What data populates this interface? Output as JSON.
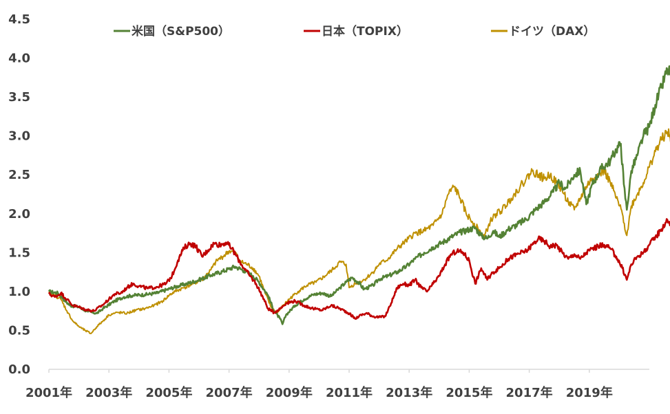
{
  "chart_data": {
    "type": "line",
    "title": "",
    "xlabel": "",
    "ylabel": "",
    "ylim": [
      0,
      4.5
    ],
    "xlim": [
      2001,
      2021.0
    ],
    "yticks": [
      "0.0",
      "0.5",
      "1.0",
      "1.5",
      "2.0",
      "2.5",
      "3.0",
      "3.5",
      "4.0",
      "4.5"
    ],
    "xticks": [
      {
        "year": 2001,
        "label": "2001年"
      },
      {
        "year": 2003,
        "label": "2003年"
      },
      {
        "year": 2005,
        "label": "2005年"
      },
      {
        "year": 2007,
        "label": "2007年"
      },
      {
        "year": 2009,
        "label": "2009年"
      },
      {
        "year": 2011,
        "label": "2011年"
      },
      {
        "year": 2013,
        "label": "2013年"
      },
      {
        "year": 2015,
        "label": "2015年"
      },
      {
        "year": 2017,
        "label": "2017年"
      },
      {
        "year": 2019,
        "label": "2019年"
      }
    ],
    "legend_position": "top",
    "series": [
      {
        "name": "米国（S&P500）",
        "color": "#548235",
        "points": [
          [
            2001.0,
            1.0
          ],
          [
            2001.3,
            0.98
          ],
          [
            2001.7,
            0.82
          ],
          [
            2002.0,
            0.8
          ],
          [
            2002.3,
            0.74
          ],
          [
            2002.6,
            0.72
          ],
          [
            2002.8,
            0.78
          ],
          [
            2003.2,
            0.88
          ],
          [
            2003.5,
            0.93
          ],
          [
            2003.8,
            0.95
          ],
          [
            2004.2,
            0.96
          ],
          [
            2004.6,
            0.98
          ],
          [
            2004.9,
            1.02
          ],
          [
            2005.3,
            1.07
          ],
          [
            2005.6,
            1.1
          ],
          [
            2006.0,
            1.15
          ],
          [
            2006.4,
            1.21
          ],
          [
            2006.8,
            1.26
          ],
          [
            2007.0,
            1.29
          ],
          [
            2007.2,
            1.32
          ],
          [
            2007.5,
            1.27
          ],
          [
            2007.8,
            1.2
          ],
          [
            2008.0,
            1.12
          ],
          [
            2008.3,
            0.95
          ],
          [
            2008.5,
            0.75
          ],
          [
            2008.7,
            0.65
          ],
          [
            2008.78,
            0.58
          ],
          [
            2008.9,
            0.7
          ],
          [
            2009.2,
            0.82
          ],
          [
            2009.5,
            0.9
          ],
          [
            2009.8,
            0.96
          ],
          [
            2010.1,
            0.98
          ],
          [
            2010.4,
            0.94
          ],
          [
            2010.7,
            1.05
          ],
          [
            2010.9,
            1.12
          ],
          [
            2011.1,
            1.18
          ],
          [
            2011.3,
            1.12
          ],
          [
            2011.5,
            1.03
          ],
          [
            2011.8,
            1.08
          ],
          [
            2012.0,
            1.16
          ],
          [
            2012.3,
            1.2
          ],
          [
            2012.6,
            1.25
          ],
          [
            2012.9,
            1.32
          ],
          [
            2013.2,
            1.42
          ],
          [
            2013.5,
            1.5
          ],
          [
            2013.8,
            1.57
          ],
          [
            2014.1,
            1.63
          ],
          [
            2014.4,
            1.7
          ],
          [
            2014.7,
            1.76
          ],
          [
            2015.0,
            1.8
          ],
          [
            2015.2,
            1.82
          ],
          [
            2015.4,
            1.72
          ],
          [
            2015.6,
            1.68
          ],
          [
            2015.8,
            1.78
          ],
          [
            2016.0,
            1.7
          ],
          [
            2016.3,
            1.8
          ],
          [
            2016.6,
            1.86
          ],
          [
            2016.9,
            1.93
          ],
          [
            2017.2,
            2.05
          ],
          [
            2017.5,
            2.15
          ],
          [
            2017.8,
            2.28
          ],
          [
            2018.0,
            2.4
          ],
          [
            2018.2,
            2.32
          ],
          [
            2018.5,
            2.5
          ],
          [
            2018.7,
            2.55
          ],
          [
            2018.9,
            2.12
          ],
          [
            2019.1,
            2.38
          ],
          [
            2019.4,
            2.58
          ],
          [
            2019.7,
            2.68
          ],
          [
            2019.9,
            2.83
          ],
          [
            2020.05,
            2.9
          ],
          [
            2020.15,
            2.38
          ],
          [
            2020.25,
            2.05
          ],
          [
            2020.4,
            2.55
          ],
          [
            2020.6,
            2.75
          ],
          [
            2020.8,
            3.0
          ],
          [
            2021.0,
            3.12
          ],
          [
            2021.2,
            3.4
          ],
          [
            2021.4,
            3.62
          ],
          [
            2021.6,
            3.85
          ],
          [
            2021.75,
            3.78
          ],
          [
            2021.9,
            4.06
          ]
        ]
      },
      {
        "name": "日本（TOPIX）",
        "color": "#C00000",
        "points": [
          [
            2001.0,
            0.97
          ],
          [
            2001.2,
            0.93
          ],
          [
            2001.4,
            0.98
          ],
          [
            2001.6,
            0.9
          ],
          [
            2001.8,
            0.82
          ],
          [
            2002.0,
            0.8
          ],
          [
            2002.2,
            0.77
          ],
          [
            2002.5,
            0.75
          ],
          [
            2002.8,
            0.83
          ],
          [
            2003.0,
            0.9
          ],
          [
            2003.2,
            0.97
          ],
          [
            2003.4,
            0.98
          ],
          [
            2003.6,
            1.05
          ],
          [
            2003.8,
            1.1
          ],
          [
            2004.0,
            1.07
          ],
          [
            2004.3,
            1.04
          ],
          [
            2004.6,
            1.06
          ],
          [
            2004.9,
            1.1
          ],
          [
            2005.1,
            1.2
          ],
          [
            2005.3,
            1.4
          ],
          [
            2005.5,
            1.56
          ],
          [
            2005.7,
            1.62
          ],
          [
            2005.9,
            1.58
          ],
          [
            2006.1,
            1.45
          ],
          [
            2006.3,
            1.53
          ],
          [
            2006.5,
            1.62
          ],
          [
            2006.7,
            1.6
          ],
          [
            2006.9,
            1.63
          ],
          [
            2007.1,
            1.55
          ],
          [
            2007.3,
            1.42
          ],
          [
            2007.5,
            1.3
          ],
          [
            2007.7,
            1.2
          ],
          [
            2007.9,
            1.1
          ],
          [
            2008.1,
            0.95
          ],
          [
            2008.3,
            0.78
          ],
          [
            2008.5,
            0.73
          ],
          [
            2008.7,
            0.78
          ],
          [
            2008.9,
            0.85
          ],
          [
            2009.2,
            0.88
          ],
          [
            2009.5,
            0.82
          ],
          [
            2009.8,
            0.78
          ],
          [
            2010.1,
            0.76
          ],
          [
            2010.4,
            0.82
          ],
          [
            2010.7,
            0.78
          ],
          [
            2011.0,
            0.72
          ],
          [
            2011.2,
            0.65
          ],
          [
            2011.4,
            0.7
          ],
          [
            2011.6,
            0.72
          ],
          [
            2011.8,
            0.68
          ],
          [
            2012.0,
            0.67
          ],
          [
            2012.2,
            0.68
          ],
          [
            2012.4,
            0.85
          ],
          [
            2012.6,
            1.05
          ],
          [
            2012.8,
            1.1
          ],
          [
            2013.0,
            1.08
          ],
          [
            2013.2,
            1.15
          ],
          [
            2013.4,
            1.05
          ],
          [
            2013.6,
            1.0
          ],
          [
            2013.8,
            1.1
          ],
          [
            2014.0,
            1.2
          ],
          [
            2014.2,
            1.35
          ],
          [
            2014.4,
            1.48
          ],
          [
            2014.6,
            1.52
          ],
          [
            2014.8,
            1.5
          ],
          [
            2015.0,
            1.4
          ],
          [
            2015.2,
            1.1
          ],
          [
            2015.4,
            1.3
          ],
          [
            2015.6,
            1.15
          ],
          [
            2015.8,
            1.25
          ],
          [
            2016.0,
            1.3
          ],
          [
            2016.3,
            1.42
          ],
          [
            2016.6,
            1.48
          ],
          [
            2016.9,
            1.52
          ],
          [
            2017.1,
            1.6
          ],
          [
            2017.3,
            1.68
          ],
          [
            2017.5,
            1.65
          ],
          [
            2017.7,
            1.58
          ],
          [
            2017.9,
            1.6
          ],
          [
            2018.1,
            1.5
          ],
          [
            2018.3,
            1.42
          ],
          [
            2018.5,
            1.48
          ],
          [
            2018.7,
            1.42
          ],
          [
            2018.9,
            1.5
          ],
          [
            2019.1,
            1.55
          ],
          [
            2019.3,
            1.58
          ],
          [
            2019.5,
            1.6
          ],
          [
            2019.7,
            1.55
          ],
          [
            2019.9,
            1.45
          ],
          [
            2020.1,
            1.3
          ],
          [
            2020.25,
            1.15
          ],
          [
            2020.4,
            1.35
          ],
          [
            2020.6,
            1.45
          ],
          [
            2020.8,
            1.5
          ],
          [
            2021.0,
            1.6
          ],
          [
            2021.2,
            1.7
          ],
          [
            2021.4,
            1.8
          ],
          [
            2021.6,
            1.92
          ],
          [
            2021.75,
            1.85
          ],
          [
            2021.9,
            1.9
          ]
        ]
      },
      {
        "name": "ドイツ（DAX）",
        "color": "#BF9000",
        "points": [
          [
            2001.0,
            0.98
          ],
          [
            2001.2,
            0.95
          ],
          [
            2001.4,
            0.9
          ],
          [
            2001.6,
            0.75
          ],
          [
            2001.8,
            0.62
          ],
          [
            2002.0,
            0.55
          ],
          [
            2002.2,
            0.5
          ],
          [
            2002.4,
            0.46
          ],
          [
            2002.6,
            0.55
          ],
          [
            2002.8,
            0.62
          ],
          [
            2003.0,
            0.7
          ],
          [
            2003.3,
            0.73
          ],
          [
            2003.6,
            0.72
          ],
          [
            2003.9,
            0.76
          ],
          [
            2004.2,
            0.78
          ],
          [
            2004.5,
            0.82
          ],
          [
            2004.8,
            0.88
          ],
          [
            2005.0,
            0.95
          ],
          [
            2005.2,
            1.0
          ],
          [
            2005.5,
            1.05
          ],
          [
            2005.8,
            1.1
          ],
          [
            2006.1,
            1.15
          ],
          [
            2006.4,
            1.28
          ],
          [
            2006.6,
            1.4
          ],
          [
            2006.8,
            1.45
          ],
          [
            2007.0,
            1.52
          ],
          [
            2007.2,
            1.5
          ],
          [
            2007.4,
            1.38
          ],
          [
            2007.6,
            1.35
          ],
          [
            2007.8,
            1.3
          ],
          [
            2008.0,
            1.2
          ],
          [
            2008.2,
            0.98
          ],
          [
            2008.4,
            0.8
          ],
          [
            2008.6,
            0.72
          ],
          [
            2008.8,
            0.82
          ],
          [
            2009.0,
            0.9
          ],
          [
            2009.3,
            1.0
          ],
          [
            2009.6,
            1.08
          ],
          [
            2009.9,
            1.12
          ],
          [
            2010.2,
            1.2
          ],
          [
            2010.5,
            1.3
          ],
          [
            2010.7,
            1.38
          ],
          [
            2010.9,
            1.35
          ],
          [
            2011.0,
            1.05
          ],
          [
            2011.2,
            1.1
          ],
          [
            2011.5,
            1.15
          ],
          [
            2011.8,
            1.25
          ],
          [
            2012.0,
            1.35
          ],
          [
            2012.3,
            1.42
          ],
          [
            2012.6,
            1.55
          ],
          [
            2012.9,
            1.65
          ],
          [
            2013.2,
            1.75
          ],
          [
            2013.5,
            1.78
          ],
          [
            2013.8,
            1.85
          ],
          [
            2014.1,
            2.0
          ],
          [
            2014.3,
            2.25
          ],
          [
            2014.5,
            2.35
          ],
          [
            2014.7,
            2.2
          ],
          [
            2014.9,
            2.0
          ],
          [
            2015.1,
            1.9
          ],
          [
            2015.3,
            1.8
          ],
          [
            2015.5,
            1.7
          ],
          [
            2015.7,
            1.9
          ],
          [
            2015.9,
            2.0
          ],
          [
            2016.1,
            2.05
          ],
          [
            2016.4,
            2.2
          ],
          [
            2016.7,
            2.35
          ],
          [
            2016.9,
            2.45
          ],
          [
            2017.1,
            2.55
          ],
          [
            2017.3,
            2.5
          ],
          [
            2017.5,
            2.45
          ],
          [
            2017.7,
            2.5
          ],
          [
            2017.9,
            2.4
          ],
          [
            2018.1,
            2.3
          ],
          [
            2018.3,
            2.15
          ],
          [
            2018.5,
            2.05
          ],
          [
            2018.7,
            2.2
          ],
          [
            2018.9,
            2.35
          ],
          [
            2019.1,
            2.45
          ],
          [
            2019.3,
            2.5
          ],
          [
            2019.5,
            2.55
          ],
          [
            2019.7,
            2.4
          ],
          [
            2019.9,
            2.2
          ],
          [
            2020.1,
            2.0
          ],
          [
            2020.25,
            1.72
          ],
          [
            2020.4,
            2.1
          ],
          [
            2020.6,
            2.25
          ],
          [
            2020.8,
            2.4
          ],
          [
            2021.0,
            2.6
          ],
          [
            2021.2,
            2.8
          ],
          [
            2021.4,
            2.95
          ],
          [
            2021.6,
            3.05
          ],
          [
            2021.75,
            2.95
          ],
          [
            2021.9,
            3.1
          ]
        ]
      }
    ]
  }
}
